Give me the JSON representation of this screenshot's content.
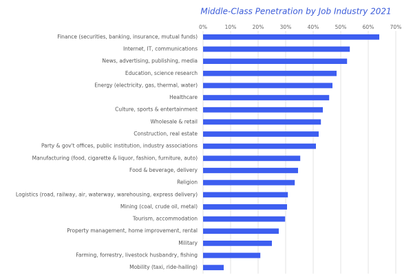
{
  "chart_data": {
    "type": "bar",
    "orientation": "horizontal",
    "title": "Middle-Class Penetration by Job Industry 2021",
    "categories": [
      "Finance (securities, banking, insurance, mutual funds)",
      "Internet, IT, communications",
      "News, advertising, publishing, media",
      "Education, science research",
      "Energy (electricity, gas, thermal, water)",
      "Healthcare",
      "Culture, sports & entertainment",
      "Wholesale & retail",
      "Construction, real estate",
      "Party & gov't offices, public institution, industry associations",
      "Manufacturing (food, cigarette & liquor, fashion, furniture, auto)",
      "Food & beverage, delivery",
      "Religion",
      "Logistics (road, railway, air, waterway, warehousing, express delivery)",
      "Mining (coal, crude oil, metal)",
      "Tourism, accommodation",
      "Property management, home improvement, rental",
      "Military",
      "Farming, forrestry, livestock husbandry, fishing",
      "Mobility (taxi, ride-hailing)"
    ],
    "values": [
      64,
      53.3,
      52.3,
      48.5,
      47,
      45.8,
      43.5,
      42.8,
      42,
      41,
      35.3,
      34.5,
      33.3,
      30.8,
      30.5,
      29.8,
      27.5,
      25,
      20.8,
      7.5
    ],
    "color": "#3d5ef0",
    "xlim": [
      0,
      70
    ],
    "xticks": [
      {
        "value": 0,
        "label": "0%"
      },
      {
        "value": 10,
        "label": "10%"
      },
      {
        "value": 20,
        "label": "20%"
      },
      {
        "value": 30,
        "label": "30%"
      },
      {
        "value": 40,
        "label": "40%"
      },
      {
        "value": 50,
        "label": "50%"
      },
      {
        "value": 60,
        "label": "60%"
      },
      {
        "value": 70,
        "label": "70%"
      }
    ],
    "grid": true
  }
}
